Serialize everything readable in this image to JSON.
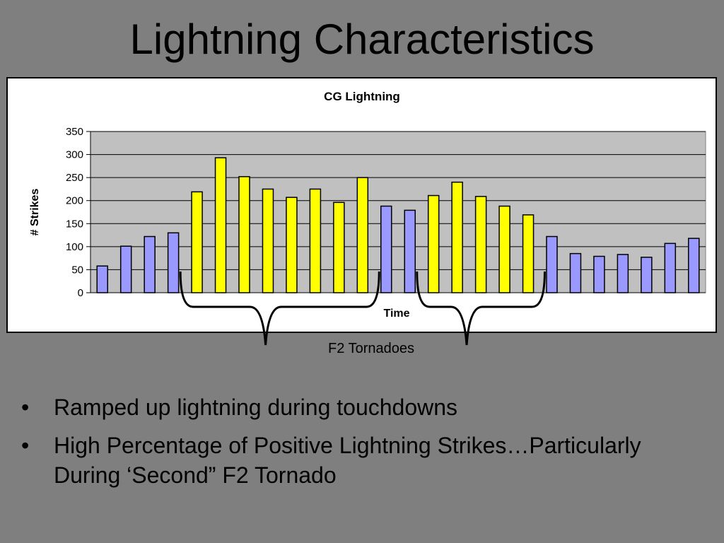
{
  "slide": {
    "title": "Lightning Characteristics",
    "annotation": "F2 Tornadoes",
    "bullets": [
      "Ramped up lightning during touchdowns",
      "High Percentage of Positive Lightning Strikes…Particularly During ‘Second” F2 Tornado"
    ]
  },
  "colors": {
    "background": "#7f7f7f",
    "plot_area": "#c0c0c0",
    "normal_bar": "#9999ff",
    "tornado_bar": "#ffff00",
    "bar_edge": "#000000"
  },
  "chart_data": {
    "type": "bar",
    "title": "CG Lightning",
    "xlabel": "Time",
    "ylabel": "# Strikes",
    "ylim": [
      0,
      350
    ],
    "yticks": [
      0,
      50,
      100,
      150,
      200,
      250,
      300,
      350
    ],
    "grid": true,
    "legend": "none",
    "values": [
      58,
      101,
      122,
      130,
      219,
      293,
      252,
      225,
      207,
      225,
      196,
      250,
      188,
      179,
      211,
      240,
      209,
      188,
      169,
      122,
      85,
      79,
      83,
      77,
      107,
      118
    ],
    "highlight": [
      false,
      false,
      false,
      false,
      true,
      true,
      true,
      true,
      true,
      true,
      true,
      true,
      false,
      false,
      true,
      true,
      true,
      true,
      true,
      false,
      false,
      false,
      false,
      false,
      false,
      false
    ],
    "tornado_groups": [
      [
        4,
        11
      ],
      [
        14,
        18
      ]
    ]
  }
}
